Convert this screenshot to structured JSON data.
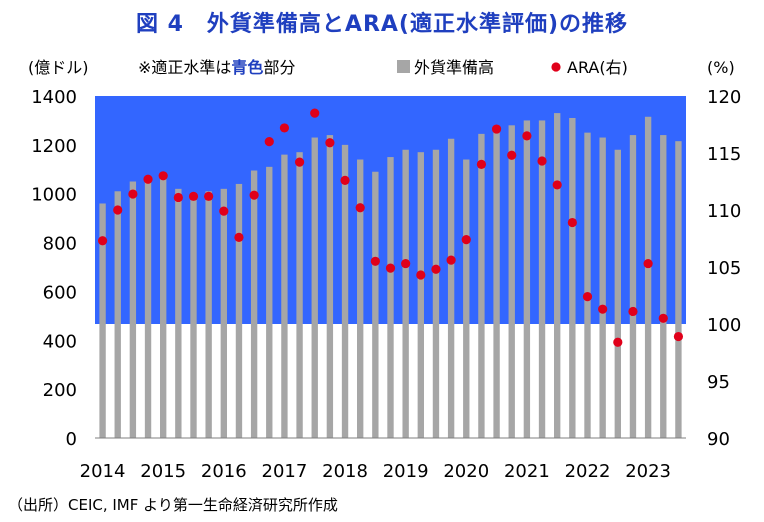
{
  "title": "図 4　外貨準備高とARA(適正水準評価)の推移",
  "source": "（出所）CEIC, IMF より第一生命経済研究所作成",
  "chart_data": {
    "type": "bar",
    "left_unit": "(億ドル)",
    "right_unit": "(%)",
    "note_prefix": "※適正水準は",
    "note_highlight": "青色",
    "note_suffix": "部分",
    "legend": [
      {
        "name": "外貨準備高",
        "marker": "square",
        "color": "#a6a6a6"
      },
      {
        "name": "ARA(右)",
        "marker": "circle",
        "color": "#e0001a"
      }
    ],
    "left_axis": {
      "min": 0,
      "max": 1400,
      "step": 200,
      "ticks": [
        "0",
        "200",
        "400",
        "600",
        "800",
        "1000",
        "1200",
        "1400"
      ]
    },
    "right_axis": {
      "min": 90,
      "max": 120,
      "step": 5,
      "ticks": [
        "90",
        "95",
        "100",
        "105",
        "110",
        "115",
        "120"
      ]
    },
    "x_tick_labels": [
      "2014",
      "2015",
      "2016",
      "2017",
      "2018",
      "2019",
      "2020",
      "2021",
      "2022",
      "2023"
    ],
    "x_tick_start_index": 0,
    "x_tick_every": 4,
    "adequate_band": {
      "axis": "right",
      "from": 100,
      "to": 120,
      "label": "適正水準",
      "color": "#3366ff"
    },
    "bar_color": "#a6a6a6",
    "dot_color": "#e0001a",
    "reserves": [
      960,
      1010,
      1050,
      1070,
      1080,
      1020,
      1000,
      1010,
      1020,
      1040,
      1095,
      1110,
      1160,
      1170,
      1230,
      1240,
      1200,
      1140,
      1090,
      1150,
      1180,
      1170,
      1180,
      1225,
      1140,
      1245,
      1265,
      1280,
      1300,
      1300,
      1330,
      1310,
      1250,
      1230,
      1180,
      1240,
      1315,
      1240,
      1215
    ],
    "ara": [
      107.3,
      110.0,
      111.4,
      112.7,
      113.0,
      111.1,
      111.2,
      111.2,
      109.9,
      107.6,
      111.3,
      116.0,
      117.2,
      114.2,
      118.5,
      115.9,
      112.6,
      110.2,
      105.5,
      104.9,
      105.3,
      104.3,
      104.8,
      105.6,
      107.4,
      114.0,
      117.1,
      114.8,
      116.5,
      114.3,
      112.2,
      108.9,
      102.4,
      101.3,
      98.4,
      101.1,
      105.3,
      100.5,
      98.9
    ]
  }
}
